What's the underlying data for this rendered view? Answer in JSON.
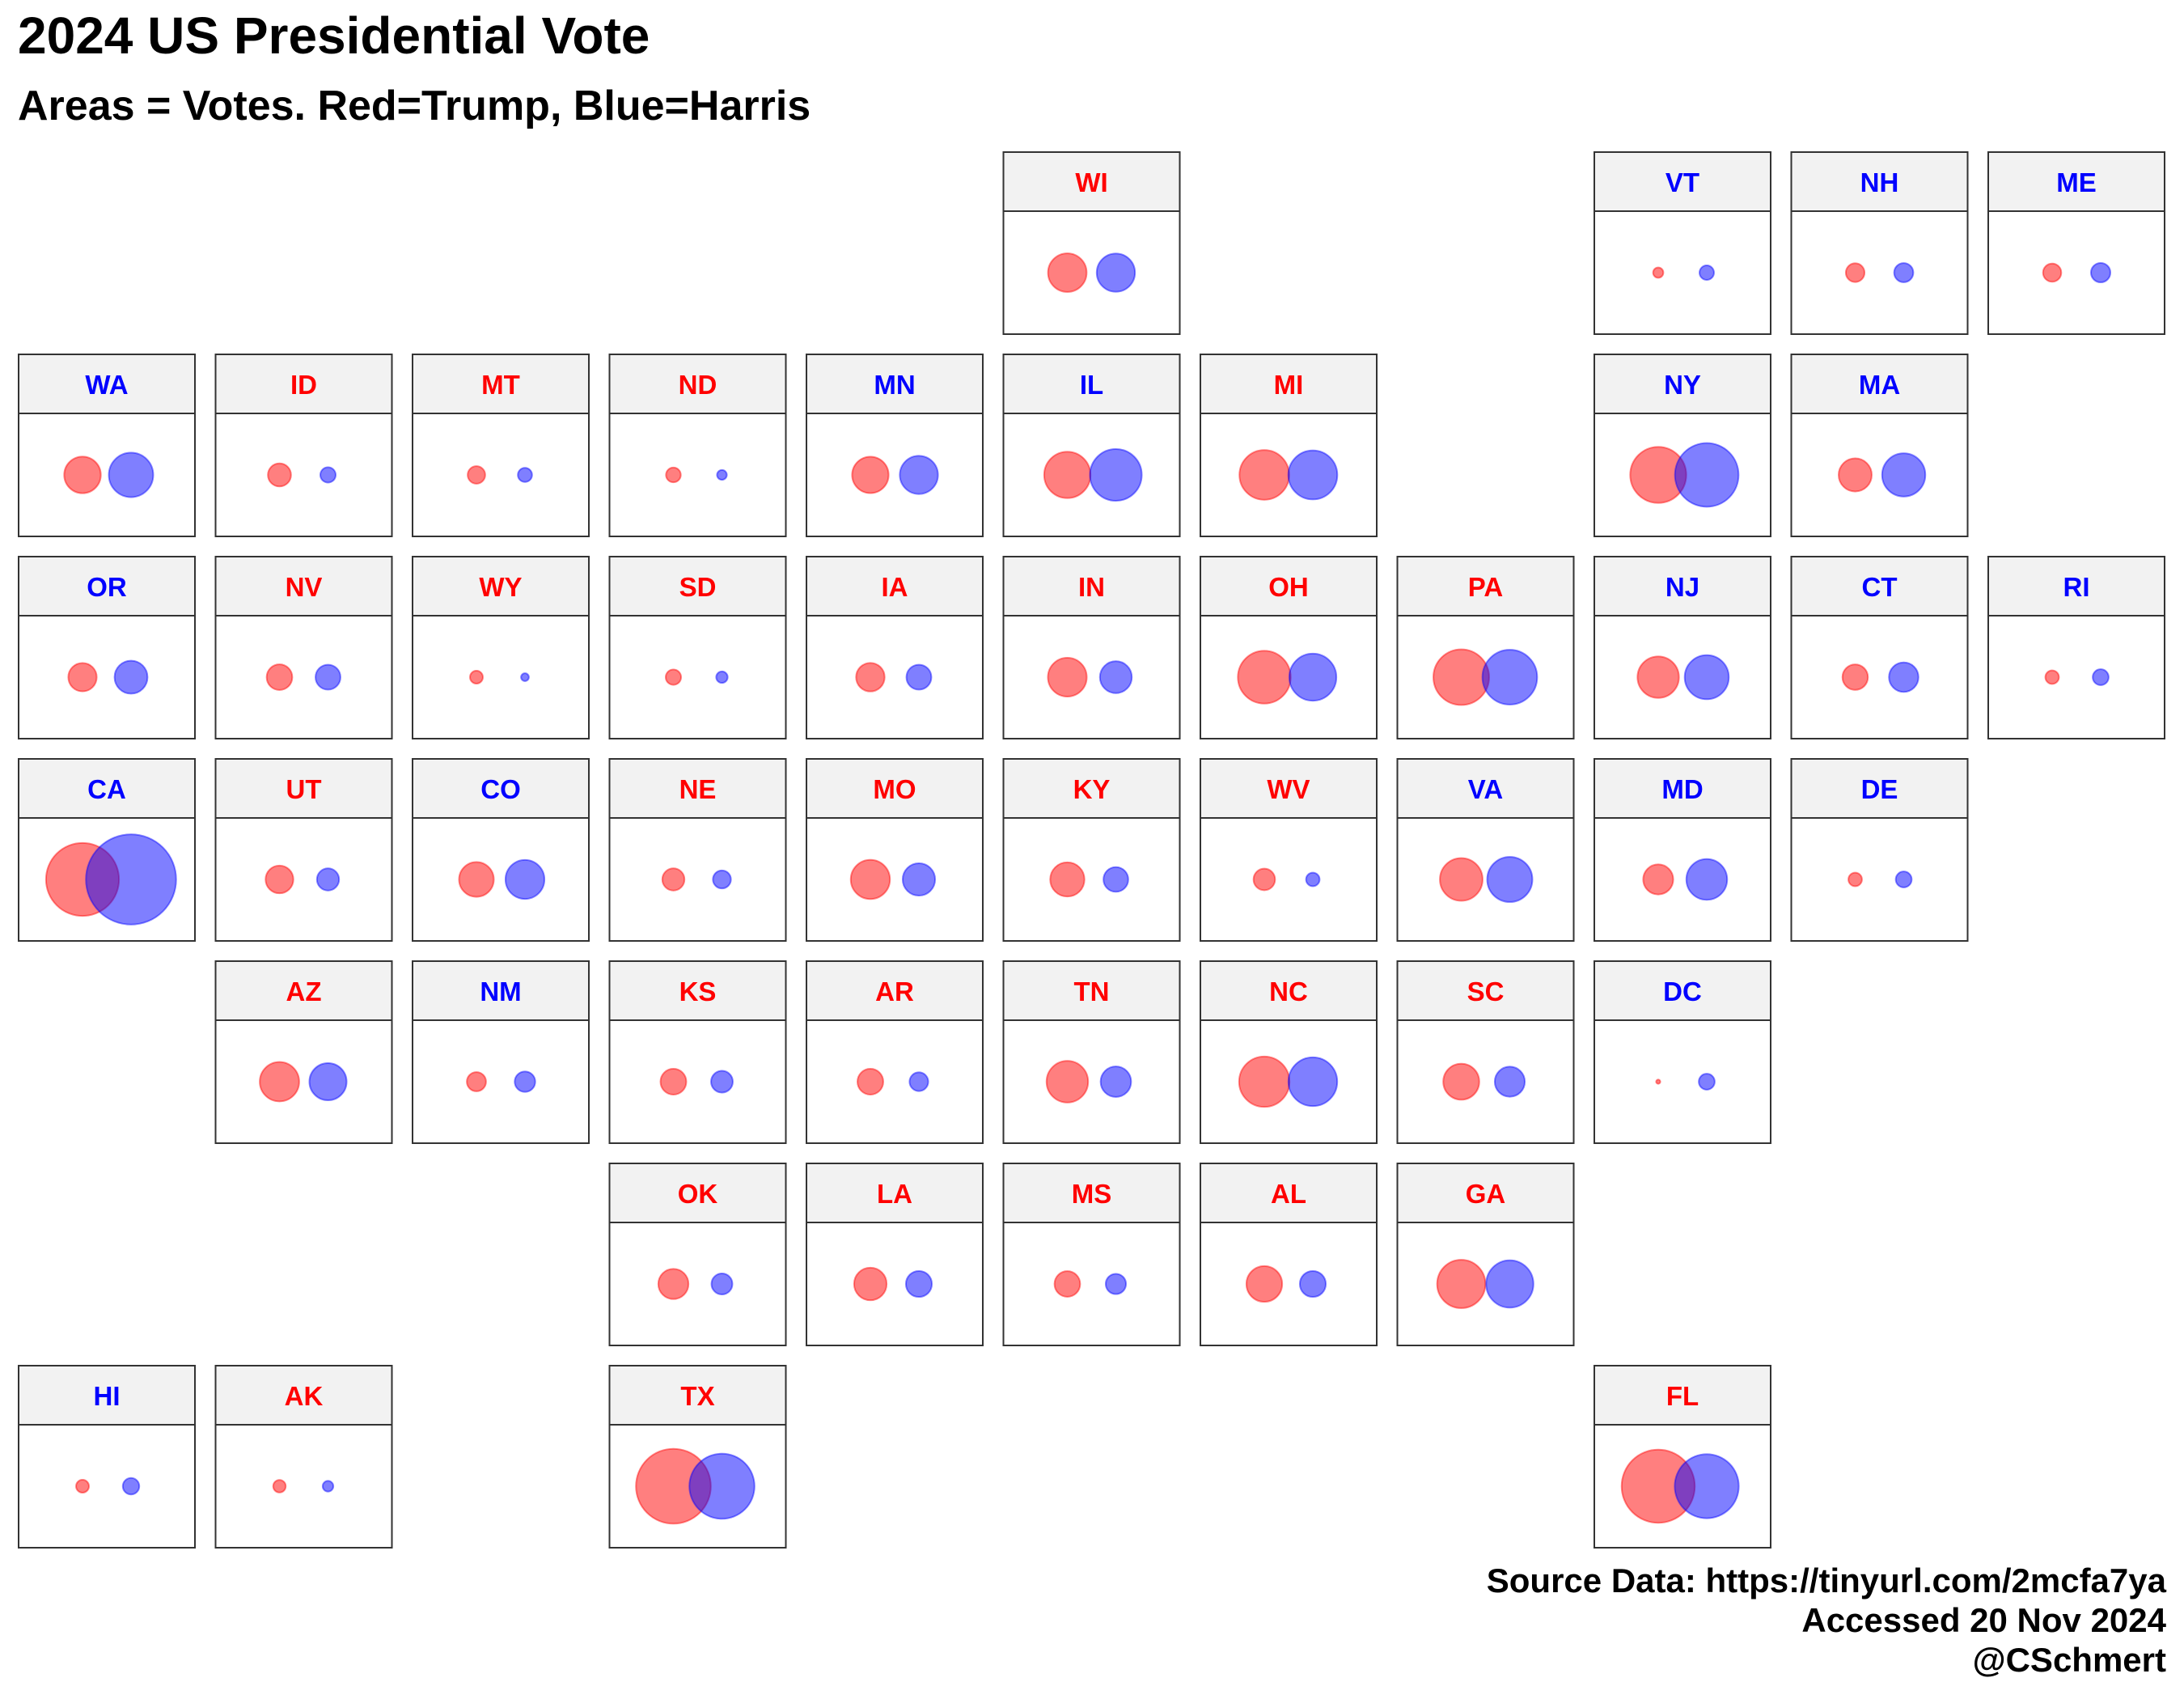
{
  "title": "2024 US Presidential Vote",
  "subtitle": "Areas = Votes. Red=Trump, Blue=Harris",
  "caption": [
    "Source Data: https://tinyurl.com/2mcfa7ya",
    "Accessed 20 Nov 2024",
    "@CSchmert"
  ],
  "colors": {
    "trump": "#ff0000",
    "harris": "#0000ff",
    "strip_fill": "#f2f2f2",
    "panel_border": "#333333"
  },
  "chart_data": {
    "type": "scatter",
    "title": "2024 US Presidential Vote",
    "subtitle": "Areas = Votes. Red=Trump, Blue=Harris",
    "size_encoding": "circle area proportional to votes (millions, approximate)",
    "series": [
      {
        "name": "Trump",
        "color": "#ff0000"
      },
      {
        "name": "Harris",
        "color": "#0000ff"
      }
    ],
    "states": [
      {
        "abbr": "WI",
        "row": 0,
        "col": 5,
        "winner": "trump",
        "trump": 1.7,
        "harris": 1.67
      },
      {
        "abbr": "VT",
        "row": 0,
        "col": 8,
        "winner": "harris",
        "trump": 0.12,
        "harris": 0.24
      },
      {
        "abbr": "NH",
        "row": 0,
        "col": 9,
        "winner": "harris",
        "trump": 0.4,
        "harris": 0.42
      },
      {
        "abbr": "ME",
        "row": 0,
        "col": 10,
        "winner": "harris",
        "trump": 0.38,
        "harris": 0.43
      },
      {
        "abbr": "WA",
        "row": 1,
        "col": 0,
        "winner": "harris",
        "trump": 1.53,
        "harris": 2.25
      },
      {
        "abbr": "ID",
        "row": 1,
        "col": 1,
        "winner": "trump",
        "trump": 0.61,
        "harris": 0.27
      },
      {
        "abbr": "MT",
        "row": 1,
        "col": 2,
        "winner": "trump",
        "trump": 0.35,
        "harris": 0.23
      },
      {
        "abbr": "ND",
        "row": 1,
        "col": 3,
        "winner": "trump",
        "trump": 0.25,
        "harris": 0.11
      },
      {
        "abbr": "MN",
        "row": 1,
        "col": 4,
        "winner": "harris",
        "trump": 1.52,
        "harris": 1.66
      },
      {
        "abbr": "IL",
        "row": 1,
        "col": 5,
        "winner": "harris",
        "trump": 2.45,
        "harris": 3.06
      },
      {
        "abbr": "MI",
        "row": 1,
        "col": 6,
        "winner": "trump",
        "trump": 2.82,
        "harris": 2.74
      },
      {
        "abbr": "NY",
        "row": 1,
        "col": 8,
        "winner": "harris",
        "trump": 3.58,
        "harris": 4.62
      },
      {
        "abbr": "MA",
        "row": 1,
        "col": 9,
        "winner": "harris",
        "trump": 1.25,
        "harris": 2.13
      },
      {
        "abbr": "OR",
        "row": 2,
        "col": 0,
        "winner": "harris",
        "trump": 0.92,
        "harris": 1.24
      },
      {
        "abbr": "NV",
        "row": 2,
        "col": 1,
        "winner": "trump",
        "trump": 0.75,
        "harris": 0.71
      },
      {
        "abbr": "WY",
        "row": 2,
        "col": 2,
        "winner": "trump",
        "trump": 0.19,
        "harris": 0.07
      },
      {
        "abbr": "SD",
        "row": 2,
        "col": 3,
        "winner": "trump",
        "trump": 0.27,
        "harris": 0.15
      },
      {
        "abbr": "IA",
        "row": 2,
        "col": 4,
        "winner": "trump",
        "trump": 0.93,
        "harris": 0.71
      },
      {
        "abbr": "IN",
        "row": 2,
        "col": 5,
        "winner": "trump",
        "trump": 1.72,
        "harris": 1.16
      },
      {
        "abbr": "OH",
        "row": 2,
        "col": 6,
        "winner": "trump",
        "trump": 3.18,
        "harris": 2.53
      },
      {
        "abbr": "PA",
        "row": 2,
        "col": 7,
        "winner": "trump",
        "trump": 3.54,
        "harris": 3.42
      },
      {
        "abbr": "NJ",
        "row": 2,
        "col": 8,
        "winner": "harris",
        "trump": 1.96,
        "harris": 2.22
      },
      {
        "abbr": "CT",
        "row": 2,
        "col": 9,
        "winner": "harris",
        "trump": 0.74,
        "harris": 0.99
      },
      {
        "abbr": "RI",
        "row": 2,
        "col": 10,
        "winner": "harris",
        "trump": 0.21,
        "harris": 0.29
      },
      {
        "abbr": "CA",
        "row": 3,
        "col": 0,
        "winner": "harris",
        "trump": 6.08,
        "harris": 9.28
      },
      {
        "abbr": "UT",
        "row": 3,
        "col": 1,
        "winner": "trump",
        "trump": 0.88,
        "harris": 0.56
      },
      {
        "abbr": "CO",
        "row": 3,
        "col": 2,
        "winner": "harris",
        "trump": 1.38,
        "harris": 1.73
      },
      {
        "abbr": "NE",
        "row": 3,
        "col": 3,
        "winner": "trump",
        "trump": 0.56,
        "harris": 0.37
      },
      {
        "abbr": "MO",
        "row": 3,
        "col": 4,
        "winner": "trump",
        "trump": 1.75,
        "harris": 1.2
      },
      {
        "abbr": "KY",
        "row": 3,
        "col": 5,
        "winner": "trump",
        "trump": 1.34,
        "harris": 0.7
      },
      {
        "abbr": "WV",
        "row": 3,
        "col": 6,
        "winner": "trump",
        "trump": 0.53,
        "harris": 0.21
      },
      {
        "abbr": "VA",
        "row": 3,
        "col": 7,
        "winner": "harris",
        "trump": 2.08,
        "harris": 2.33
      },
      {
        "abbr": "MD",
        "row": 3,
        "col": 8,
        "winner": "harris",
        "trump": 1.03,
        "harris": 1.9
      },
      {
        "abbr": "DE",
        "row": 3,
        "col": 9,
        "winner": "harris",
        "trump": 0.21,
        "harris": 0.29
      },
      {
        "abbr": "AZ",
        "row": 4,
        "col": 1,
        "winner": "trump",
        "trump": 1.77,
        "harris": 1.58
      },
      {
        "abbr": "NM",
        "row": 4,
        "col": 2,
        "winner": "harris",
        "trump": 0.42,
        "harris": 0.48
      },
      {
        "abbr": "KS",
        "row": 4,
        "col": 3,
        "winner": "trump",
        "trump": 0.76,
        "harris": 0.54
      },
      {
        "abbr": "AR",
        "row": 4,
        "col": 4,
        "winner": "trump",
        "trump": 0.76,
        "harris": 0.4
      },
      {
        "abbr": "TN",
        "row": 4,
        "col": 5,
        "winner": "trump",
        "trump": 1.97,
        "harris": 1.06
      },
      {
        "abbr": "NC",
        "row": 4,
        "col": 6,
        "winner": "trump",
        "trump": 2.9,
        "harris": 2.72
      },
      {
        "abbr": "SC",
        "row": 4,
        "col": 7,
        "winner": "trump",
        "trump": 1.48,
        "harris": 1.03
      },
      {
        "abbr": "DC",
        "row": 4,
        "col": 8,
        "winner": "harris",
        "trump": 0.02,
        "harris": 0.29
      },
      {
        "abbr": "OK",
        "row": 5,
        "col": 3,
        "winner": "trump",
        "trump": 1.04,
        "harris": 0.5
      },
      {
        "abbr": "LA",
        "row": 5,
        "col": 4,
        "winner": "trump",
        "trump": 1.21,
        "harris": 0.77
      },
      {
        "abbr": "MS",
        "row": 5,
        "col": 5,
        "winner": "trump",
        "trump": 0.75,
        "harris": 0.47
      },
      {
        "abbr": "AL",
        "row": 5,
        "col": 6,
        "winner": "trump",
        "trump": 1.46,
        "harris": 0.77
      },
      {
        "abbr": "GA",
        "row": 5,
        "col": 7,
        "winner": "trump",
        "trump": 2.66,
        "harris": 2.55
      },
      {
        "abbr": "HI",
        "row": 6,
        "col": 0,
        "winner": "harris",
        "trump": 0.19,
        "harris": 0.31
      },
      {
        "abbr": "AK",
        "row": 6,
        "col": 1,
        "winner": "trump",
        "trump": 0.18,
        "harris": 0.13
      },
      {
        "abbr": "TX",
        "row": 6,
        "col": 3,
        "winner": "trump",
        "trump": 6.39,
        "harris": 4.84
      },
      {
        "abbr": "FL",
        "row": 6,
        "col": 8,
        "winner": "trump",
        "trump": 6.11,
        "harris": 4.68
      }
    ]
  }
}
